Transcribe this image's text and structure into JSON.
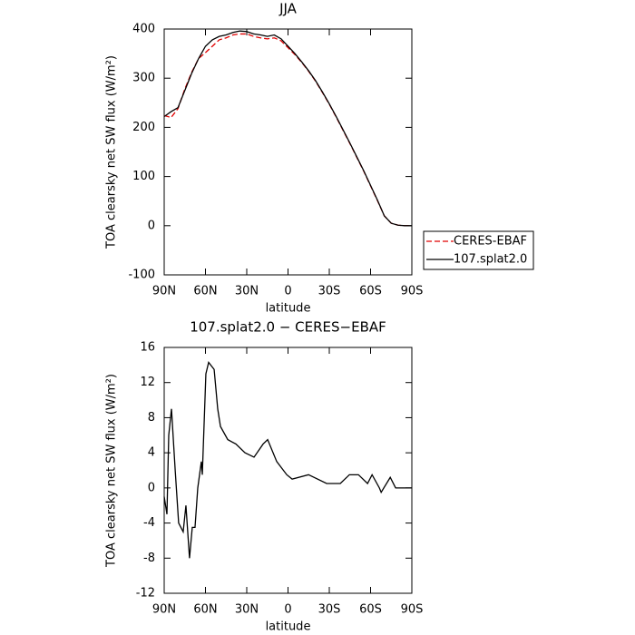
{
  "chart_data": [
    {
      "type": "line",
      "title": "JJA",
      "xlabel": "latitude",
      "ylabel": "TOA clearsky net SW flux (W/m²)",
      "x": [
        90,
        85,
        80,
        75,
        70,
        65,
        60,
        55,
        50,
        45,
        40,
        35,
        30,
        25,
        20,
        15,
        10,
        5,
        0,
        -5,
        -10,
        -15,
        -20,
        -25,
        -30,
        -35,
        -40,
        -45,
        -50,
        -55,
        -60,
        -65,
        -70,
        -75,
        -80,
        -85,
        -90
      ],
      "series": [
        {
          "name": "CERES-EBAF",
          "color": "#e00000",
          "dash": "dashed",
          "values": [
            224,
            220,
            238,
            278,
            312,
            340,
            352,
            365,
            378,
            382,
            388,
            390,
            390,
            385,
            382,
            380,
            382,
            376,
            362,
            348,
            332,
            314,
            294,
            271,
            247,
            221,
            194,
            167,
            139,
            111,
            81,
            51,
            20,
            5,
            1,
            0,
            0
          ]
        },
        {
          "name": "107.splat2.0",
          "color": "#000000",
          "dash": "solid",
          "values": [
            222,
            232,
            240,
            275,
            310,
            340,
            365,
            378,
            385,
            388,
            393,
            396,
            395,
            390,
            388,
            385,
            388,
            380,
            365,
            350,
            333,
            315,
            295,
            272,
            248,
            222,
            195,
            168,
            140,
            112,
            82,
            52,
            20,
            5,
            1,
            0,
            0
          ]
        }
      ],
      "xlim": [
        90,
        -90
      ],
      "xticks": [
        {
          "value": 90,
          "label": "90N"
        },
        {
          "value": 60,
          "label": "60N"
        },
        {
          "value": 30,
          "label": "30N"
        },
        0,
        {
          "value": -30,
          "label": "30S"
        },
        {
          "value": -60,
          "label": "60S"
        },
        {
          "value": -90,
          "label": "90S"
        }
      ],
      "ylim": [
        -100,
        400
      ],
      "yticks": [
        -100,
        0,
        100,
        200,
        300,
        400
      ],
      "legend": "right"
    },
    {
      "type": "line",
      "title": "107.splat2.0 − CERES−EBAF",
      "xlabel": "latitude",
      "ylabel": "TOA clearsky net SW flux (W/m²)",
      "x": [
        90,
        88,
        86.7,
        84.7,
        82,
        79.5,
        76.2,
        74.2,
        71.6,
        69.6,
        67.6,
        65.6,
        63,
        62.3,
        59.7,
        57.7,
        53.7,
        51.1,
        49.1,
        43.8,
        37.9,
        31.3,
        24.7,
        18.1,
        14.8,
        8.2,
        0.9,
        -3,
        -14.9,
        -28.1,
        -38,
        -44.6,
        -51.2,
        -57.8,
        -61.1,
        -66.4,
        -67.7,
        -74.3,
        -78.2,
        -90
      ],
      "series": [
        {
          "color": "#000000",
          "dash": "solid",
          "values": [
            -1,
            -3,
            6,
            9,
            2,
            -4,
            -5,
            -2,
            -8,
            -4.5,
            -4.5,
            0,
            3,
            1.5,
            13,
            14.3,
            13.5,
            9,
            7,
            5.5,
            5,
            4,
            3.5,
            5,
            5.5,
            3,
            1.5,
            1,
            1.5,
            0.5,
            0.5,
            1.5,
            1.5,
            0.5,
            1.5,
            0,
            -0.5,
            1.2,
            0,
            0
          ]
        }
      ],
      "xlim": [
        90,
        -90
      ],
      "xticks": [
        {
          "value": 90,
          "label": "90N"
        },
        {
          "value": 60,
          "label": "60N"
        },
        {
          "value": 30,
          "label": "30N"
        },
        0,
        {
          "value": -30,
          "label": "30S"
        },
        {
          "value": -60,
          "label": "60S"
        },
        {
          "value": -90,
          "label": "90S"
        }
      ],
      "ylim": [
        -12,
        16
      ],
      "yticks": [
        -12,
        -8,
        -4,
        0,
        4,
        8,
        12,
        16
      ]
    }
  ]
}
